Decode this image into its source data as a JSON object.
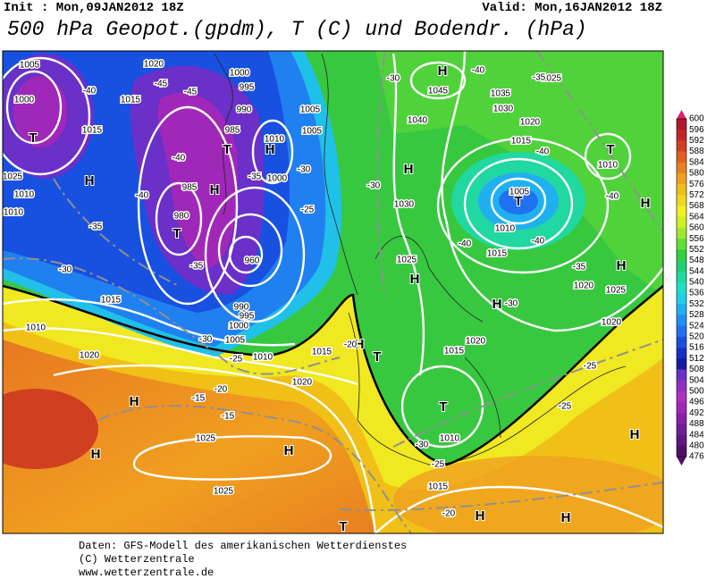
{
  "header": {
    "init": "Init : Mon,09JAN2012 18Z",
    "valid": "Valid: Mon,16JAN2012 18Z",
    "title": "500 hPa Geopot.(gpdm), T (C) und Bodendr. (hPa)"
  },
  "legend": {
    "levels": [
      600,
      596,
      592,
      588,
      584,
      580,
      576,
      572,
      568,
      564,
      560,
      556,
      552,
      548,
      544,
      540,
      536,
      532,
      528,
      524,
      520,
      516,
      512,
      508,
      504,
      500,
      496,
      492,
      488,
      484,
      480,
      476
    ]
  },
  "map_labels": [
    "H",
    "T",
    "H",
    "T",
    "H",
    "T",
    "H",
    "H",
    "T",
    "T",
    "H",
    "H",
    "H",
    "H",
    "T",
    "T",
    "H",
    "H",
    "H",
    "H",
    "H",
    "H",
    "T",
    "H",
    "1005",
    "1000",
    "1020",
    "1015",
    "1015",
    "1025",
    "1010",
    "1010",
    "1000",
    "995",
    "990",
    "985",
    "985",
    "980",
    "1005",
    "1005",
    "1010",
    "1000",
    "1045",
    "1040",
    "1035",
    "1030",
    "1025",
    "1020",
    "1015",
    "1005",
    "1010",
    "1015",
    "1030",
    "1025",
    "1020",
    "1025",
    "1020",
    "1010",
    "1020",
    "1015",
    "1010",
    "1015",
    "1015",
    "1010",
    "1020",
    "1010",
    "1005",
    "1000",
    "995",
    "990",
    "1015",
    "1020",
    "1025",
    "1025",
    "960",
    "-40",
    "-45",
    "-45",
    "-40",
    "-40",
    "-35",
    "-30",
    "-35",
    "-30",
    "-25",
    "-20",
    "-15",
    "-15",
    "-40",
    "-35",
    "-30",
    "-40",
    "-40",
    "-40",
    "-40",
    "-30",
    "-35",
    "-30",
    "-25",
    "-30",
    "-25",
    "-25",
    "-25",
    "-20",
    "-30",
    "-20",
    "-35"
  ],
  "footer": [
    "Daten: GFS-Modell des amerikanischen Wetterdienstes",
    "(C) Wetterzentrale",
    "www.wetterzentrale.de"
  ]
}
